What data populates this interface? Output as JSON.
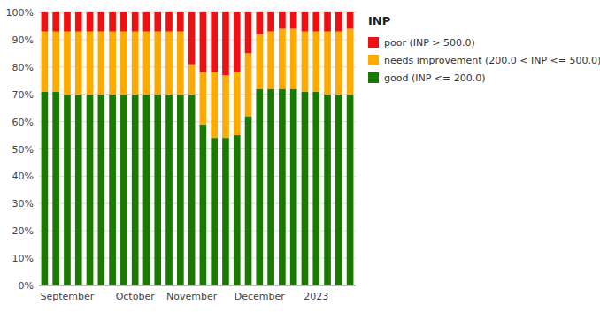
{
  "chart_data": {
    "type": "bar",
    "title": "INP",
    "stacked": true,
    "grid": true,
    "legend": "right",
    "categories": [
      null,
      null,
      "September",
      null,
      null,
      null,
      null,
      null,
      "October",
      null,
      null,
      null,
      null,
      "November",
      null,
      null,
      null,
      null,
      null,
      "December",
      null,
      null,
      null,
      null,
      "2023",
      null,
      null,
      null
    ],
    "series": [
      {
        "name": "good (INP <= 200.0)",
        "color": "#1a7a00",
        "values": [
          71,
          71,
          70,
          70,
          70,
          70,
          70,
          70,
          70,
          70,
          70,
          70,
          70,
          70,
          59,
          54,
          54,
          55,
          62,
          72,
          72,
          72,
          72,
          71,
          71,
          70,
          70,
          70
        ]
      },
      {
        "name": "needs improvement (200.0 < INP <= 500.0)",
        "color": "#ffaa00",
        "values": [
          22,
          22,
          23,
          23,
          23,
          23,
          23,
          23,
          23,
          23,
          23,
          23,
          23,
          11,
          19,
          24,
          23,
          23,
          23,
          20,
          21,
          22,
          22,
          22,
          22,
          23,
          23,
          24
        ]
      },
      {
        "name": "poor (INP > 500.0)",
        "color": "#ee1111",
        "values": [
          7,
          7,
          7,
          7,
          7,
          7,
          7,
          7,
          7,
          7,
          7,
          7,
          7,
          19,
          22,
          22,
          23,
          22,
          15,
          8,
          7,
          6,
          6,
          7,
          7,
          7,
          7,
          6
        ]
      }
    ],
    "ylim": [
      0,
      100
    ],
    "yticks": [
      {
        "value": 0,
        "label": "0%"
      },
      {
        "value": 10,
        "label": "10%"
      },
      {
        "value": 20,
        "label": "20%"
      },
      {
        "value": 30,
        "label": "30%"
      },
      {
        "value": 40,
        "label": "40%"
      },
      {
        "value": 50,
        "label": "50%"
      },
      {
        "value": 60,
        "label": "60%"
      },
      {
        "value": 70,
        "label": "70%"
      },
      {
        "value": 80,
        "label": "80%"
      },
      {
        "value": 90,
        "label": "90%"
      },
      {
        "value": 100,
        "label": "100%"
      }
    ]
  }
}
